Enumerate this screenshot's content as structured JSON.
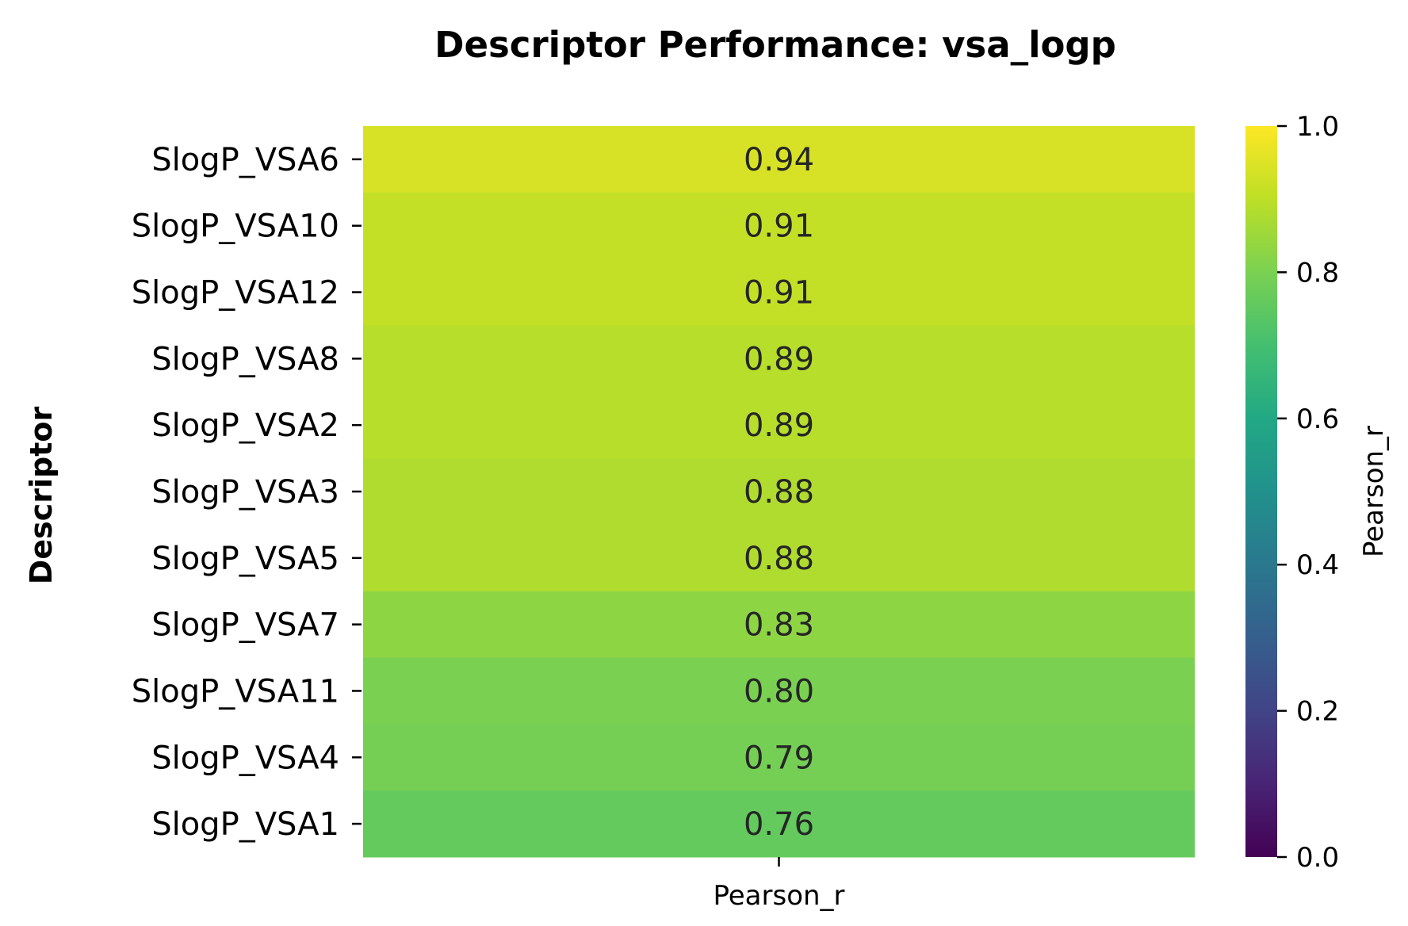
{
  "chart_data": {
    "type": "heatmap",
    "title": "Descriptor Performance: vsa_logp",
    "ylabel": "Descriptor",
    "xlabel": "",
    "columns": [
      "Pearson_r"
    ],
    "rows": [
      "SlogP_VSA6",
      "SlogP_VSA10",
      "SlogP_VSA12",
      "SlogP_VSA8",
      "SlogP_VSA2",
      "SlogP_VSA3",
      "SlogP_VSA5",
      "SlogP_VSA7",
      "SlogP_VSA11",
      "SlogP_VSA4",
      "SlogP_VSA1"
    ],
    "values": [
      0.94,
      0.91,
      0.91,
      0.89,
      0.89,
      0.88,
      0.88,
      0.83,
      0.8,
      0.79,
      0.76
    ],
    "value_labels": [
      "0.94",
      "0.91",
      "0.91",
      "0.89",
      "0.89",
      "0.88",
      "0.88",
      "0.83",
      "0.80",
      "0.79",
      "0.76"
    ],
    "colormap": "viridis",
    "colorbar": {
      "label": "Pearson_r",
      "range": [
        0.0,
        1.0
      ],
      "ticks": [
        0.0,
        0.2,
        0.4,
        0.6,
        0.8,
        1.0
      ],
      "tick_labels": [
        "0.0",
        "0.2",
        "0.4",
        "0.6",
        "0.8",
        "1.0"
      ]
    }
  }
}
